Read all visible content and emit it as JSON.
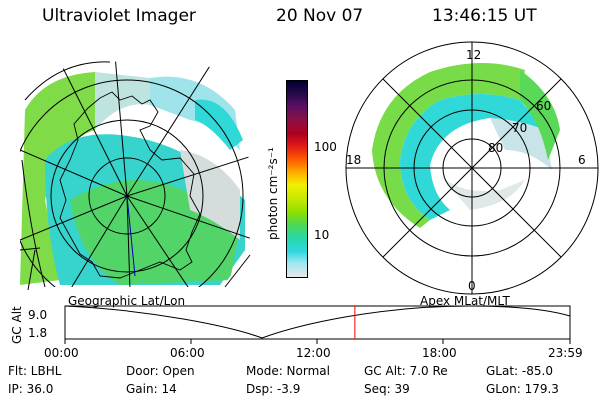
{
  "header": {
    "instrument": "Ultraviolet Imager",
    "date": "20 Nov 07",
    "time": "13:46:15 UT"
  },
  "geo_panel": {
    "label": "Geographic Lat/Lon"
  },
  "polar_panel": {
    "label": "Apex  MLat/MLT",
    "mlt_labels": [
      "12",
      "18",
      "6",
      "0"
    ],
    "lat_labels": [
      "60",
      "70",
      "80"
    ]
  },
  "colorbar": {
    "unit_label": "photon cm⁻²s⁻¹",
    "ticks": [
      "100",
      "10"
    ],
    "colors": [
      "#000033",
      "#2a0a4a",
      "#5a1064",
      "#8a1044",
      "#b00020",
      "#e01818",
      "#ff5a00",
      "#ffb000",
      "#f0f000",
      "#c8e800",
      "#8ee000",
      "#50d850",
      "#28d8a8",
      "#30d8e0",
      "#a0e8f0",
      "#e8e8e8"
    ]
  },
  "timeline": {
    "y_axis_label": "GC Alt",
    "y_ticks": [
      "9.0",
      "1.8"
    ],
    "x_ticks": [
      "00:00",
      "06:00",
      "12:00",
      "18:00",
      "23:59"
    ],
    "current_time_fraction": 0.574,
    "marker_color": "#ff0000"
  },
  "status": {
    "flt": "Flt: LBHL",
    "ip": "IP: 36.0",
    "door": "Door: Open",
    "gain": "Gain: 14",
    "mode": "Mode: Normal",
    "dsp": "Dsp:    -3.9",
    "gc_alt": "GC Alt: 7.0 Re",
    "seq": "Seq: 39",
    "glat": "GLat: -85.0",
    "glon": "GLon: 179.3"
  }
}
